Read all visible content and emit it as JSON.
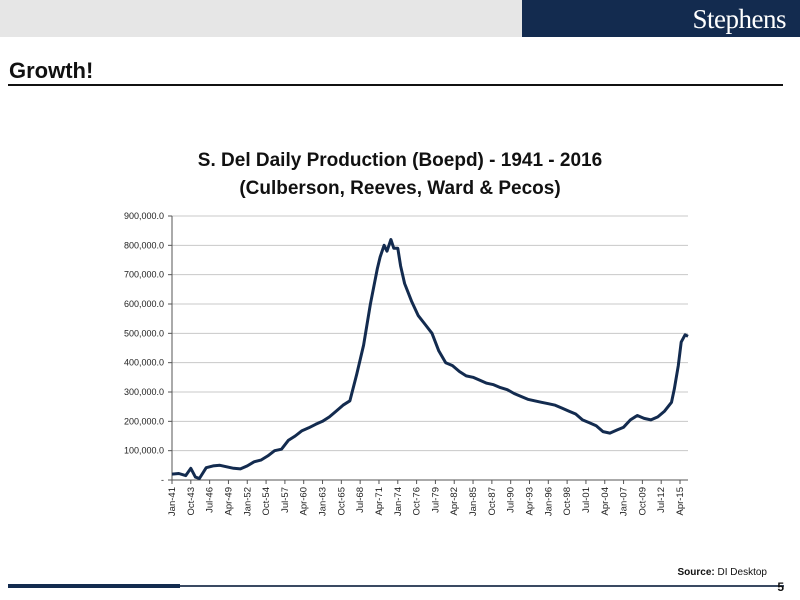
{
  "header": {
    "logo_text": "Stephens"
  },
  "page": {
    "title": "Growth!",
    "number": "5"
  },
  "source": {
    "label": "Source:",
    "text": "DI Desktop"
  },
  "colors": {
    "brand_navy": "#132b4f",
    "series_line": "#132b4f",
    "gridline": "#c8c8c8"
  },
  "chart_data": {
    "type": "line",
    "title_line1": "S. Del Daily Production (Boepd) - 1941 - 2016",
    "title_line2": "(Culberson, Reeves, Ward & Pecos)",
    "xlabel": "",
    "ylabel": "",
    "ylim": [
      0,
      900000
    ],
    "grid": true,
    "legend": "none",
    "y_ticks": [
      0,
      100000,
      200000,
      300000,
      400000,
      500000,
      600000,
      700000,
      800000,
      900000
    ],
    "y_tick_labels": [
      "-",
      "100,000.0",
      "200,000.0",
      "300,000.0",
      "400,000.0",
      "500,000.0",
      "600,000.0",
      "700,000.0",
      "800,000.0",
      "900,000.0"
    ],
    "x_range": [
      "1941-01",
      "2016-06"
    ],
    "x_tick_labels": [
      "Jan-41",
      "Oct-43",
      "Jul-46",
      "Apr-49",
      "Jan-52",
      "Oct-54",
      "Jul-57",
      "Apr-60",
      "Jan-63",
      "Oct-65",
      "Jul-68",
      "Apr-71",
      "Jan-74",
      "Oct-76",
      "Jul-79",
      "Apr-82",
      "Jan-85",
      "Oct-87",
      "Jul-90",
      "Apr-93",
      "Jan-96",
      "Oct-98",
      "Jul-01",
      "Apr-04",
      "Jan-07",
      "Oct-09",
      "Jul-12",
      "Apr-15"
    ],
    "series": [
      {
        "x": [
          "1941-01",
          "1942-01",
          "1943-01",
          "1943-10",
          "1944-06",
          "1945-01",
          "1946-01",
          "1947-01",
          "1948-01",
          "1949-01",
          "1950-01",
          "1951-01",
          "1952-01",
          "1953-01",
          "1954-01",
          "1955-01",
          "1956-01",
          "1957-01",
          "1958-01",
          "1959-01",
          "1960-01",
          "1961-01",
          "1962-01",
          "1963-01",
          "1964-01",
          "1965-01",
          "1966-01",
          "1967-01",
          "1968-01",
          "1969-01",
          "1970-01",
          "1971-01",
          "1971-06",
          "1972-01",
          "1972-06",
          "1973-01",
          "1973-06",
          "1974-01",
          "1974-06",
          "1975-01",
          "1976-01",
          "1977-01",
          "1978-01",
          "1979-01",
          "1980-01",
          "1981-01",
          "1982-01",
          "1983-01",
          "1984-01",
          "1985-01",
          "1986-01",
          "1987-01",
          "1988-01",
          "1989-01",
          "1990-01",
          "1991-01",
          "1992-01",
          "1993-01",
          "1994-01",
          "1995-01",
          "1996-01",
          "1997-01",
          "1998-01",
          "1999-01",
          "2000-01",
          "2001-01",
          "2002-01",
          "2003-01",
          "2004-01",
          "2005-01",
          "2006-01",
          "2007-01",
          "2008-01",
          "2009-01",
          "2010-01",
          "2011-01",
          "2012-01",
          "2013-01",
          "2014-01",
          "2014-06",
          "2015-01",
          "2015-06",
          "2016-01",
          "2016-06"
        ],
        "values": [
          20000,
          22000,
          15000,
          40000,
          10000,
          5000,
          42000,
          48000,
          50000,
          45000,
          40000,
          38000,
          48000,
          62000,
          68000,
          82000,
          100000,
          105000,
          135000,
          150000,
          168000,
          178000,
          190000,
          200000,
          215000,
          235000,
          255000,
          270000,
          360000,
          460000,
          600000,
          720000,
          760000,
          800000,
          780000,
          820000,
          790000,
          790000,
          730000,
          670000,
          610000,
          560000,
          530000,
          500000,
          440000,
          400000,
          390000,
          370000,
          355000,
          350000,
          340000,
          330000,
          325000,
          315000,
          308000,
          295000,
          285000,
          275000,
          270000,
          265000,
          260000,
          255000,
          245000,
          235000,
          225000,
          205000,
          195000,
          185000,
          165000,
          160000,
          170000,
          180000,
          205000,
          220000,
          210000,
          205000,
          215000,
          235000,
          265000,
          310000,
          390000,
          470000,
          495000,
          490000
        ]
      }
    ]
  }
}
